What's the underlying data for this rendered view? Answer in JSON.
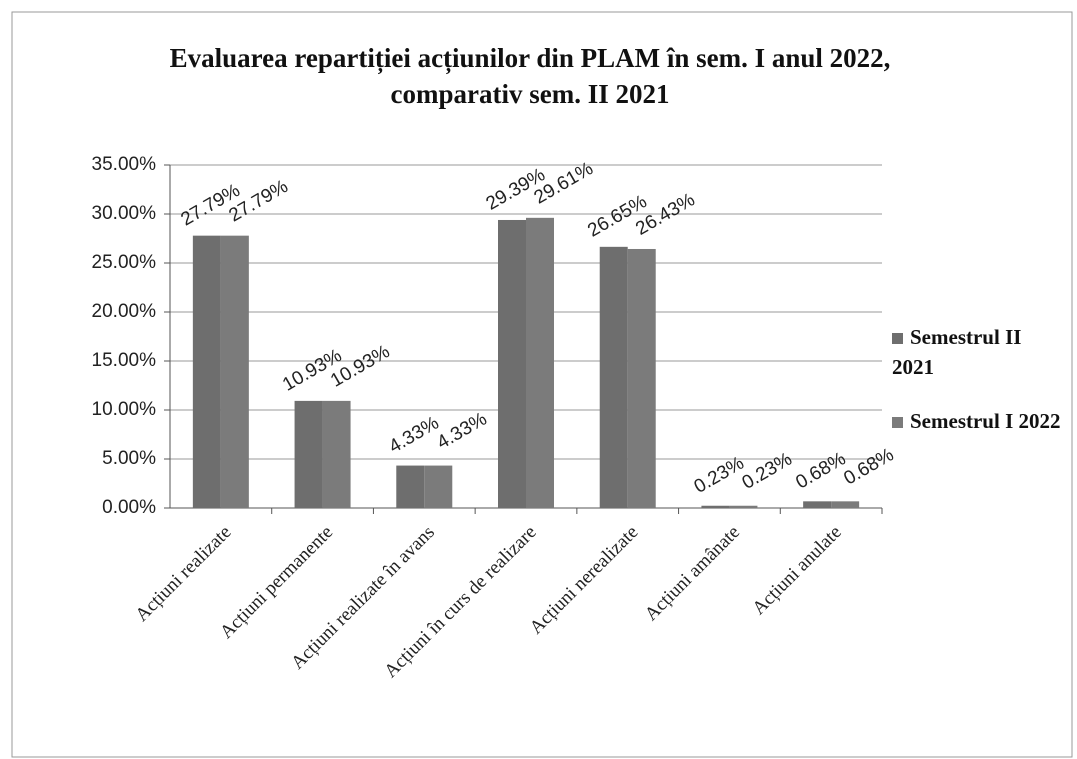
{
  "chart_data": {
    "type": "bar",
    "title": "Evaluarea repartiției acțiunilor din PLAM în sem. I anul 2022, comparativ sem. II 2021",
    "categories": [
      "Acțiuni realizate",
      "Acțiuni permanente",
      "Acțiuni realizate în avans",
      "Acțiuni în curs de realizare",
      "Acțiuni nerealizate",
      "Acțiuni amânate",
      "Acțiuni anulate"
    ],
    "series": [
      {
        "name": "Semestrul II 2021",
        "color": "#6e6e6e",
        "values": [
          27.79,
          10.93,
          4.33,
          29.39,
          26.65,
          0.23,
          0.68
        ],
        "value_labels": [
          "27.79%",
          "10.93%",
          "4.33%",
          "29.39%",
          "26.65%",
          "0.23%",
          "0.68%"
        ]
      },
      {
        "name": "Semestrul I 2022",
        "color": "#7b7b7b",
        "values": [
          27.79,
          10.93,
          4.33,
          29.61,
          26.43,
          0.23,
          0.68
        ],
        "value_labels": [
          "27.79%",
          "10.93%",
          "4.33%",
          "29.61%",
          "26.43%",
          "0.23%",
          "0.68%"
        ]
      }
    ],
    "ylim": [
      0,
      35
    ],
    "yticks": [
      {
        "value": 0,
        "label": "0.00%"
      },
      {
        "value": 5,
        "label": "5.00%"
      },
      {
        "value": 10,
        "label": "10.00%"
      },
      {
        "value": 15,
        "label": "15.00%"
      },
      {
        "value": 20,
        "label": "20.00%"
      },
      {
        "value": 25,
        "label": "25.00%"
      },
      {
        "value": 30,
        "label": "30.00%"
      },
      {
        "value": 35,
        "label": "35.00%"
      }
    ],
    "grid": true,
    "legend": "right"
  }
}
